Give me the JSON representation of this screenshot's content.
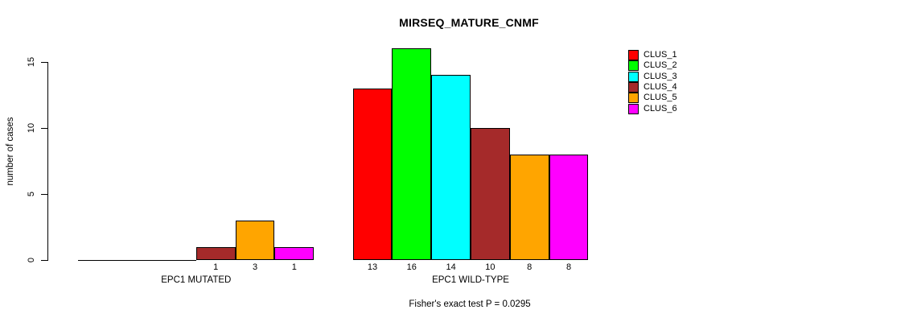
{
  "chart_data": {
    "type": "bar",
    "title": "MIRSEQ_MATURE_CNMF",
    "ylabel": "number of cases",
    "xlabel": "",
    "yticks": [
      0,
      5,
      10,
      15
    ],
    "ylim": [
      0,
      16.5
    ],
    "grid": false,
    "legend_position": "right",
    "series": [
      {
        "name": "CLUS_1",
        "color": "#FF0000",
        "values": [
          0,
          13
        ]
      },
      {
        "name": "CLUS_2",
        "color": "#00FF00",
        "values": [
          0,
          16
        ]
      },
      {
        "name": "CLUS_3",
        "color": "#00FFFF",
        "values": [
          0,
          14
        ]
      },
      {
        "name": "CLUS_4",
        "color": "#A52A2A",
        "values": [
          1,
          10
        ]
      },
      {
        "name": "CLUS_5",
        "color": "#FFA500",
        "values": [
          3,
          8
        ]
      },
      {
        "name": "CLUS_6",
        "color": "#FF00FF",
        "values": [
          1,
          8
        ]
      }
    ],
    "groups": [
      {
        "label": "EPC1 MUTATED",
        "values": [
          0,
          0,
          0,
          1,
          3,
          1
        ],
        "bar_labels": [
          "",
          "",
          "",
          "1",
          "3",
          "1"
        ]
      },
      {
        "label": "EPC1 WILD-TYPE",
        "values": [
          13,
          16,
          14,
          10,
          8,
          8
        ],
        "bar_labels": [
          "13",
          "16",
          "14",
          "10",
          "8",
          "8"
        ]
      }
    ],
    "legend": [
      "CLUS_1",
      "CLUS_2",
      "CLUS_3",
      "CLUS_4",
      "CLUS_5",
      "CLUS_6"
    ],
    "annotation": "Fisher's exact test P = 0.0295"
  }
}
